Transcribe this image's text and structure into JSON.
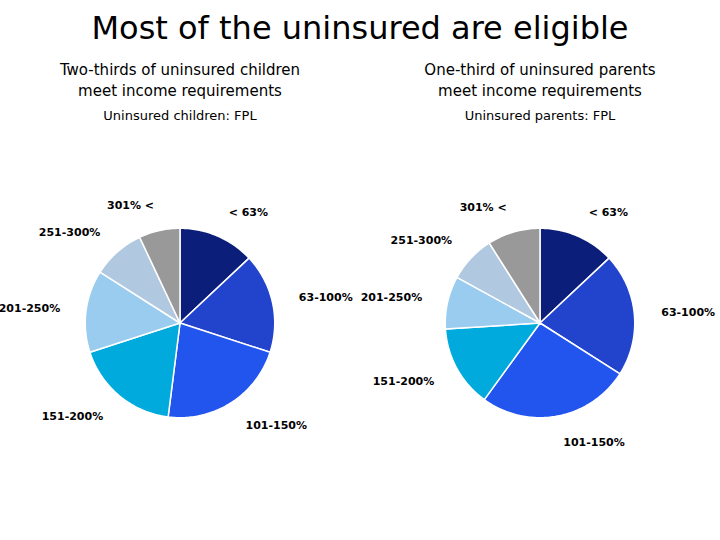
{
  "title": "Most of the uninsured are eligible",
  "chart_data": [
    {
      "type": "pie",
      "title": "Uninsured children: FPL",
      "subtitle": "Two-thirds of uninsured children\nmeet income requirements",
      "categories": [
        "< 63%",
        "63-100%",
        "101-150%",
        "151-200%",
        "201-250%",
        "251-300%",
        "301% <"
      ],
      "values": [
        13,
        17,
        22,
        18,
        14,
        9,
        7
      ],
      "colors": [
        "#0b1f7a",
        "#2244cc",
        "#2255ee",
        "#00aadd",
        "#99ccee",
        "#b0c8e0",
        "#999999"
      ]
    },
    {
      "type": "pie",
      "title": "Uninsured parents: FPL",
      "subtitle": "One-third of uninsured parents\nmeet income requirements",
      "categories": [
        "< 63%",
        "63-100%",
        "101-150%",
        "151-200%",
        "201-250%",
        "251-300%",
        "301% <"
      ],
      "values": [
        13,
        21,
        26,
        14,
        9,
        8,
        9
      ],
      "colors": [
        "#0b1f7a",
        "#2244cc",
        "#2255ee",
        "#00aadd",
        "#99ccee",
        "#b0c8e0",
        "#999999"
      ]
    }
  ]
}
